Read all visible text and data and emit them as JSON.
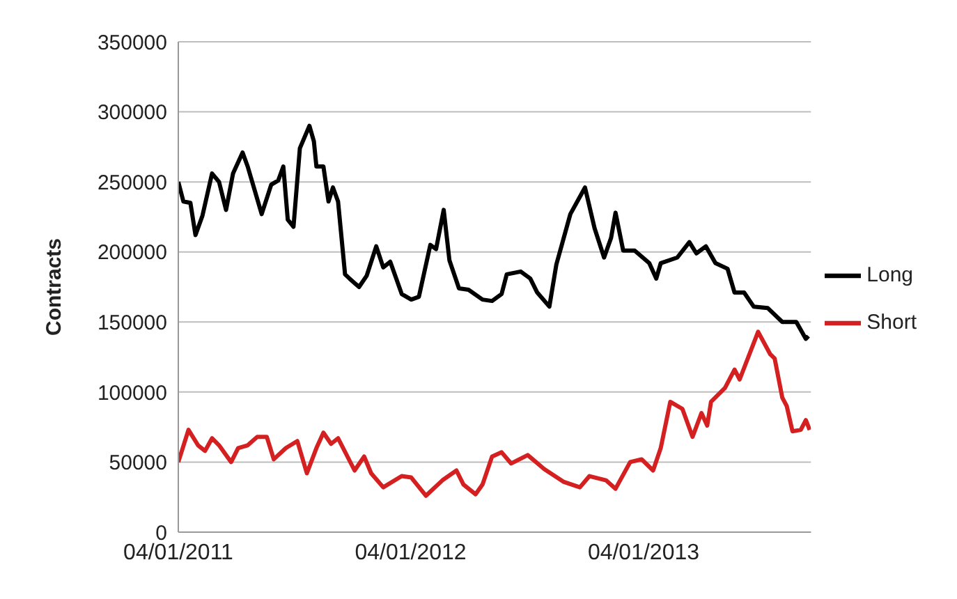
{
  "chart_data": {
    "type": "line",
    "ylabel": "Contracts",
    "xlim": [
      "2011-01-04",
      "2013-09-24"
    ],
    "xticks": [
      {
        "value": "2011-01-04",
        "label": "04/01/2011"
      },
      {
        "value": "2012-01-04",
        "label": "04/01/2012"
      },
      {
        "value": "2013-01-04",
        "label": "04/01/2013"
      }
    ],
    "ylim": [
      0,
      350000
    ],
    "yticks": [
      0,
      50000,
      100000,
      150000,
      200000,
      250000,
      300000,
      350000
    ],
    "grid": "y",
    "legend": "right",
    "marker": "none",
    "line_style": "solid",
    "series": [
      {
        "name": "Long",
        "color": "#000000",
        "x": [
          "2011-01-04",
          "2011-01-12",
          "2011-01-23",
          "2011-01-31",
          "2011-02-11",
          "2011-02-26",
          "2011-03-09",
          "2011-03-20",
          "2011-03-31",
          "2011-04-15",
          "2011-04-23",
          "2011-05-15",
          "2011-05-30",
          "2011-06-10",
          "2011-06-18",
          "2011-06-25",
          "2011-07-04",
          "2011-07-14",
          "2011-07-29",
          "2011-08-05",
          "2011-08-09",
          "2011-08-20",
          "2011-08-28",
          "2011-09-04",
          "2011-09-12",
          "2011-09-23",
          "2011-09-30",
          "2011-10-15",
          "2011-10-27",
          "2011-11-11",
          "2011-11-22",
          "2011-12-03",
          "2011-12-21",
          "2012-01-05",
          "2012-01-17",
          "2012-02-04",
          "2012-02-13",
          "2012-02-25",
          "2012-03-05",
          "2012-03-20",
          "2012-04-04",
          "2012-04-26",
          "2012-05-11",
          "2012-05-26",
          "2012-06-03",
          "2012-06-25",
          "2012-07-10",
          "2012-07-21",
          "2012-08-09",
          "2012-08-20",
          "2012-09-11",
          "2012-10-04",
          "2012-10-19",
          "2012-11-03",
          "2012-11-14",
          "2012-11-21",
          "2012-12-03",
          "2012-12-21",
          "2013-01-13",
          "2013-01-24",
          "2013-01-31",
          "2013-02-26",
          "2013-03-17",
          "2013-03-28",
          "2013-04-12",
          "2013-04-27",
          "2013-05-16",
          "2013-05-27",
          "2013-06-11",
          "2013-06-26",
          "2013-07-18",
          "2013-08-10",
          "2013-09-01",
          "2013-09-16",
          "2013-09-20"
        ],
        "values": [
          250000,
          236000,
          235000,
          212000,
          226000,
          256000,
          250000,
          230000,
          256000,
          271000,
          261000,
          227000,
          248000,
          251000,
          261000,
          223000,
          218000,
          274000,
          290000,
          279000,
          261000,
          261000,
          236000,
          246000,
          236000,
          184000,
          181000,
          175000,
          183000,
          204000,
          189000,
          193000,
          170000,
          166000,
          168000,
          205000,
          202000,
          230000,
          194000,
          174000,
          173000,
          166000,
          165000,
          170000,
          184000,
          186000,
          181000,
          171000,
          161000,
          191000,
          227000,
          246000,
          217000,
          196000,
          210000,
          228000,
          201000,
          201000,
          192000,
          181000,
          192000,
          196000,
          207000,
          199000,
          204000,
          192000,
          188000,
          171000,
          171000,
          161000,
          160000,
          150000,
          150000,
          138000,
          140000
        ]
      },
      {
        "name": "Short",
        "color": "#d42020",
        "x": [
          "2011-01-04",
          "2011-01-20",
          "2011-02-04",
          "2011-02-15",
          "2011-02-26",
          "2011-03-09",
          "2011-03-28",
          "2011-04-08",
          "2011-04-23",
          "2011-05-08",
          "2011-05-23",
          "2011-06-03",
          "2011-06-22",
          "2011-07-10",
          "2011-07-25",
          "2011-08-09",
          "2011-08-20",
          "2011-09-01",
          "2011-09-12",
          "2011-10-08",
          "2011-10-23",
          "2011-11-03",
          "2011-11-22",
          "2011-12-21",
          "2012-01-05",
          "2012-01-28",
          "2012-02-23",
          "2012-03-16",
          "2012-03-27",
          "2012-04-15",
          "2012-04-26",
          "2012-05-11",
          "2012-05-26",
          "2012-06-10",
          "2012-07-06",
          "2012-08-01",
          "2012-08-31",
          "2012-09-26",
          "2012-10-11",
          "2012-11-06",
          "2012-11-21",
          "2012-12-14",
          "2013-01-01",
          "2013-01-19",
          "2013-01-31",
          "2013-02-15",
          "2013-03-06",
          "2013-03-22",
          "2013-04-05",
          "2013-04-14",
          "2013-04-20",
          "2013-05-12",
          "2013-05-27",
          "2013-06-04",
          "2013-07-03",
          "2013-07-22",
          "2013-07-29",
          "2013-08-10",
          "2013-08-17",
          "2013-08-26",
          "2013-09-08",
          "2013-09-16",
          "2013-09-22"
        ],
        "values": [
          50000,
          73000,
          62000,
          58000,
          67000,
          62000,
          50000,
          60000,
          62000,
          68000,
          68000,
          52000,
          60000,
          65000,
          42000,
          60000,
          71000,
          63000,
          67000,
          44000,
          54000,
          42000,
          32000,
          40000,
          39000,
          26000,
          37000,
          44000,
          34000,
          27000,
          34000,
          54000,
          57000,
          49000,
          55000,
          45000,
          36000,
          32000,
          40000,
          37000,
          31000,
          50000,
          52000,
          44000,
          60000,
          93000,
          88000,
          68000,
          85000,
          76000,
          93000,
          103000,
          116000,
          109000,
          143000,
          127000,
          124000,
          96000,
          90000,
          72000,
          73000,
          80000,
          73000
        ]
      }
    ]
  }
}
